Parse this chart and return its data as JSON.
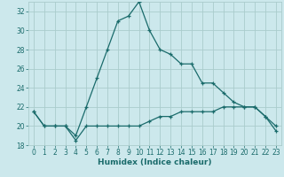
{
  "xlabel": "Humidex (Indice chaleur)",
  "bg_color": "#cce8ec",
  "grid_color": "#aacccc",
  "line_color": "#1a6b6b",
  "x_values": [
    0,
    1,
    2,
    3,
    4,
    5,
    6,
    7,
    8,
    9,
    10,
    11,
    12,
    13,
    14,
    15,
    16,
    17,
    18,
    19,
    20,
    21,
    22,
    23
  ],
  "line1_y": [
    21.5,
    20.0,
    20.0,
    20.0,
    19.0,
    22.0,
    25.0,
    28.0,
    31.0,
    31.5,
    33.0,
    30.0,
    28.0,
    27.5,
    26.5,
    26.5,
    24.5,
    24.5,
    23.5,
    22.5,
    22.0,
    22.0,
    21.0,
    20.0
  ],
  "line2_y": [
    21.5,
    20.0,
    20.0,
    20.0,
    18.5,
    20.0,
    20.0,
    20.0,
    20.0,
    20.0,
    20.0,
    20.5,
    21.0,
    21.0,
    21.5,
    21.5,
    21.5,
    21.5,
    22.0,
    22.0,
    22.0,
    22.0,
    21.0,
    19.5
  ],
  "ylim": [
    18,
    33
  ],
  "xlim": [
    -0.5,
    23.5
  ],
  "yticks": [
    18,
    20,
    22,
    24,
    26,
    28,
    30,
    32
  ],
  "xticks": [
    0,
    1,
    2,
    3,
    4,
    5,
    6,
    7,
    8,
    9,
    10,
    11,
    12,
    13,
    14,
    15,
    16,
    17,
    18,
    19,
    20,
    21,
    22,
    23
  ],
  "tick_fontsize": 5.5,
  "xlabel_fontsize": 6.5
}
